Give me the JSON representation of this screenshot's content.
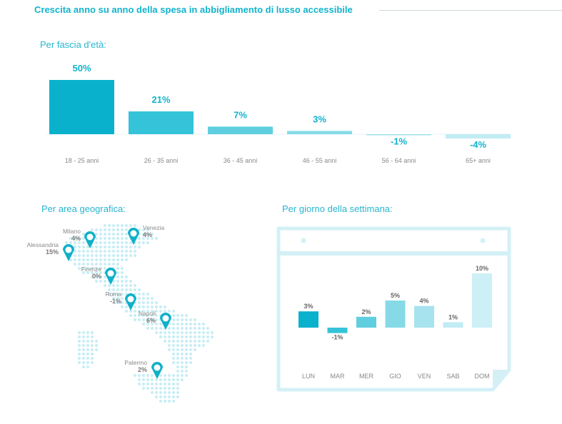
{
  "title": "Crescita anno su anno della spesa in abbigliamento di lusso accessibile",
  "sections": {
    "age": "Per fascia d'età:",
    "geo": "Per area geografica:",
    "week": "Per giorno della settimana:"
  },
  "colors": {
    "accent": "#12b3cc",
    "bar_shades": [
      "#0ab1cd",
      "#34c3d9",
      "#5fcfe0",
      "#86dae8",
      "#a6e3ee",
      "#c2ecf4",
      "#ccf0f6"
    ],
    "map_dot": "#c9eef5",
    "pin": "#0fb0c8",
    "calendar_frame": "#d4f0f6"
  },
  "map": {
    "icon": "location-pin-icon",
    "pins": [
      {
        "city": "Milano",
        "value": "4%"
      },
      {
        "city": "Venezia",
        "value": "4%"
      },
      {
        "city": "Alessandria",
        "value": "15%"
      },
      {
        "city": "Firenze",
        "value": "0%"
      },
      {
        "city": "Roma",
        "value": "-1%"
      },
      {
        "city": "Napoli",
        "value": "6%"
      },
      {
        "city": "Palermo",
        "value": "2%"
      }
    ]
  },
  "chart_data": [
    {
      "type": "bar",
      "title": "Per fascia d'età:",
      "categories": [
        "18 - 25 anni",
        "26 - 35 anni",
        "36 - 45 anni",
        "46 - 55 anni",
        "56 - 64 anni",
        "65+ anni"
      ],
      "values": [
        50,
        21,
        7,
        3,
        -1,
        -4
      ],
      "labels": [
        "50%",
        "21%",
        "7%",
        "3%",
        "-1%",
        "-4%"
      ],
      "ylim": [
        -5,
        52
      ],
      "grid": false,
      "legend": "none"
    },
    {
      "type": "bar",
      "title": "Per giorno della settimana:",
      "categories": [
        "LUN",
        "MAR",
        "MER",
        "GIO",
        "VEN",
        "SAB",
        "DOM"
      ],
      "values": [
        3,
        -1,
        2,
        5,
        4,
        1,
        10
      ],
      "labels": [
        "3%",
        "-1%",
        "2%",
        "5%",
        "4%",
        "1%",
        "10%"
      ],
      "ylim": [
        -1.5,
        10.5
      ],
      "grid": false,
      "legend": "none"
    }
  ]
}
